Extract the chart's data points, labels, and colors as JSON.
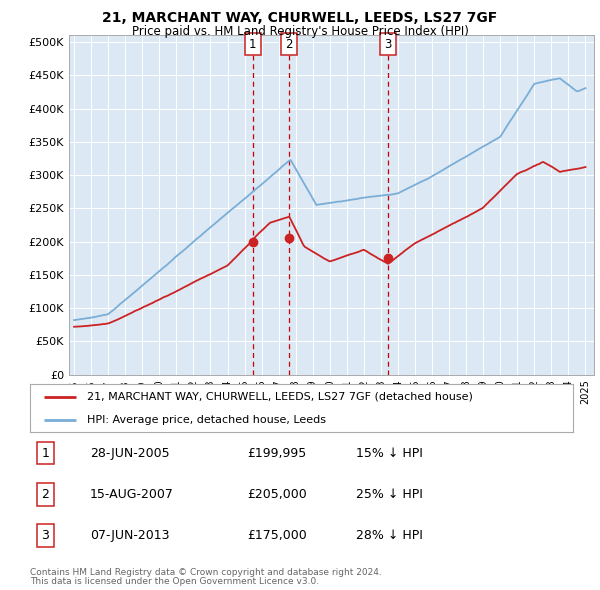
{
  "title1": "21, MARCHANT WAY, CHURWELL, LEEDS, LS27 7GF",
  "title2": "Price paid vs. HM Land Registry's House Price Index (HPI)",
  "plot_bg_color": "#dce9f5",
  "ylim": [
    0,
    510000
  ],
  "yticks": [
    0,
    50000,
    100000,
    150000,
    200000,
    250000,
    300000,
    350000,
    400000,
    450000,
    500000
  ],
  "ytick_labels": [
    "£0",
    "£50K",
    "£100K",
    "£150K",
    "£200K",
    "£250K",
    "£300K",
    "£350K",
    "£400K",
    "£450K",
    "£500K"
  ],
  "hpi_color": "#7aaed6",
  "price_color": "#cc2222",
  "vline_color": "#cc0000",
  "transactions": [
    {
      "date_num": 2005.49,
      "price": 199995,
      "label": "1"
    },
    {
      "date_num": 2007.62,
      "price": 205000,
      "label": "2"
    },
    {
      "date_num": 2013.43,
      "price": 175000,
      "label": "3"
    }
  ],
  "legend_line1": "21, MARCHANT WAY, CHURWELL, LEEDS, LS27 7GF (detached house)",
  "legend_line2": "HPI: Average price, detached house, Leeds",
  "table_rows": [
    {
      "num": "1",
      "date": "28-JUN-2005",
      "price": "£199,995",
      "hpi": "15% ↓ HPI"
    },
    {
      "num": "2",
      "date": "15-AUG-2007",
      "price": "£205,000",
      "hpi": "25% ↓ HPI"
    },
    {
      "num": "3",
      "date": "07-JUN-2013",
      "price": "£175,000",
      "hpi": "28% ↓ HPI"
    }
  ],
  "footnote1": "Contains HM Land Registry data © Crown copyright and database right 2024.",
  "footnote2": "This data is licensed under the Open Government Licence v3.0.",
  "xtick_years": [
    1995,
    1996,
    1997,
    1998,
    1999,
    2000,
    2001,
    2002,
    2003,
    2004,
    2005,
    2006,
    2007,
    2008,
    2009,
    2010,
    2011,
    2012,
    2013,
    2014,
    2015,
    2016,
    2017,
    2018,
    2019,
    2020,
    2021,
    2022,
    2023,
    2024,
    2025
  ]
}
